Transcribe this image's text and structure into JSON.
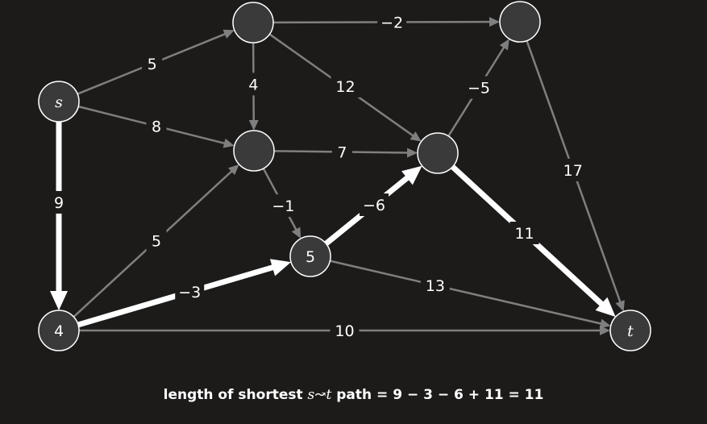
{
  "colors": {
    "background": "#1d1b1a",
    "node_fill": "#3a3a3a",
    "edge": "#7f7f7f",
    "highlight_edge": "#ffffff",
    "text": "#ffffff"
  },
  "nodes": [
    {
      "id": "s",
      "label": "s",
      "italic": true
    },
    {
      "id": "a",
      "label": ""
    },
    {
      "id": "b",
      "label": ""
    },
    {
      "id": "c",
      "label": ""
    },
    {
      "id": "d",
      "label": "5"
    },
    {
      "id": "e",
      "label": ""
    },
    {
      "id": "f",
      "label": "4"
    },
    {
      "id": "t",
      "label": "t",
      "italic": true
    }
  ],
  "edges": [
    {
      "from": "s",
      "to": "a",
      "weight": "5",
      "highlight": false
    },
    {
      "from": "s",
      "to": "c",
      "weight": "8",
      "highlight": false
    },
    {
      "from": "s",
      "to": "f",
      "weight": "9",
      "highlight": true
    },
    {
      "from": "a",
      "to": "b",
      "weight": "−2",
      "highlight": false
    },
    {
      "from": "a",
      "to": "c",
      "weight": "4",
      "highlight": false
    },
    {
      "from": "a",
      "to": "e",
      "weight": "12",
      "highlight": false
    },
    {
      "from": "c",
      "to": "e",
      "weight": "7",
      "highlight": false
    },
    {
      "from": "c",
      "to": "d",
      "weight": "−1",
      "highlight": false
    },
    {
      "from": "f",
      "to": "c",
      "weight": "5",
      "highlight": false
    },
    {
      "from": "f",
      "to": "d",
      "weight": "−3",
      "highlight": true
    },
    {
      "from": "f",
      "to": "t",
      "weight": "10",
      "highlight": false
    },
    {
      "from": "d",
      "to": "e",
      "weight": "−6",
      "highlight": true
    },
    {
      "from": "d",
      "to": "t",
      "weight": "13",
      "highlight": false
    },
    {
      "from": "e",
      "to": "b",
      "weight": "−5",
      "highlight": false
    },
    {
      "from": "e",
      "to": "t",
      "weight": "11",
      "highlight": true
    },
    {
      "from": "b",
      "to": "t",
      "weight": "17",
      "highlight": false
    }
  ],
  "caption": {
    "prefix": "length of shortest ",
    "path_symbol": "s↝t",
    "suffix": " path = 9 − 3 − 6 + 11 = 11"
  }
}
